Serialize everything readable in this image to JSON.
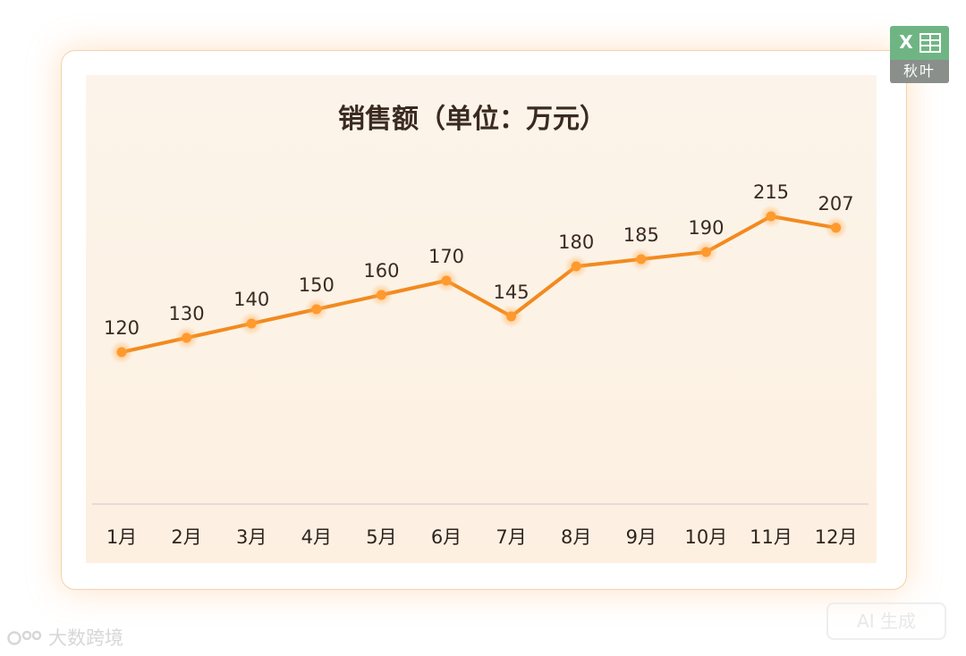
{
  "chart_data": {
    "type": "line",
    "title": "销售额（单位：万元）",
    "categories": [
      "1月",
      "2月",
      "3月",
      "4月",
      "5月",
      "6月",
      "7月",
      "8月",
      "9月",
      "10月",
      "11月",
      "12月"
    ],
    "values": [
      120,
      130,
      140,
      150,
      160,
      170,
      145,
      180,
      185,
      190,
      215,
      207
    ],
    "data_labels": [
      "120",
      "130",
      "140",
      "150",
      "160",
      "170",
      "145",
      "180",
      "185",
      "190",
      "215",
      "207"
    ],
    "xlabel": "",
    "ylabel": "",
    "grid": false,
    "drop_lines": true,
    "line_color": "#f28a1e",
    "point_color": "#ff9a2e"
  },
  "badge": {
    "text": "秋叶",
    "icon": "excel-icon",
    "letter": "X"
  },
  "ai_label": "AI 生成",
  "watermark": "大数跨境"
}
